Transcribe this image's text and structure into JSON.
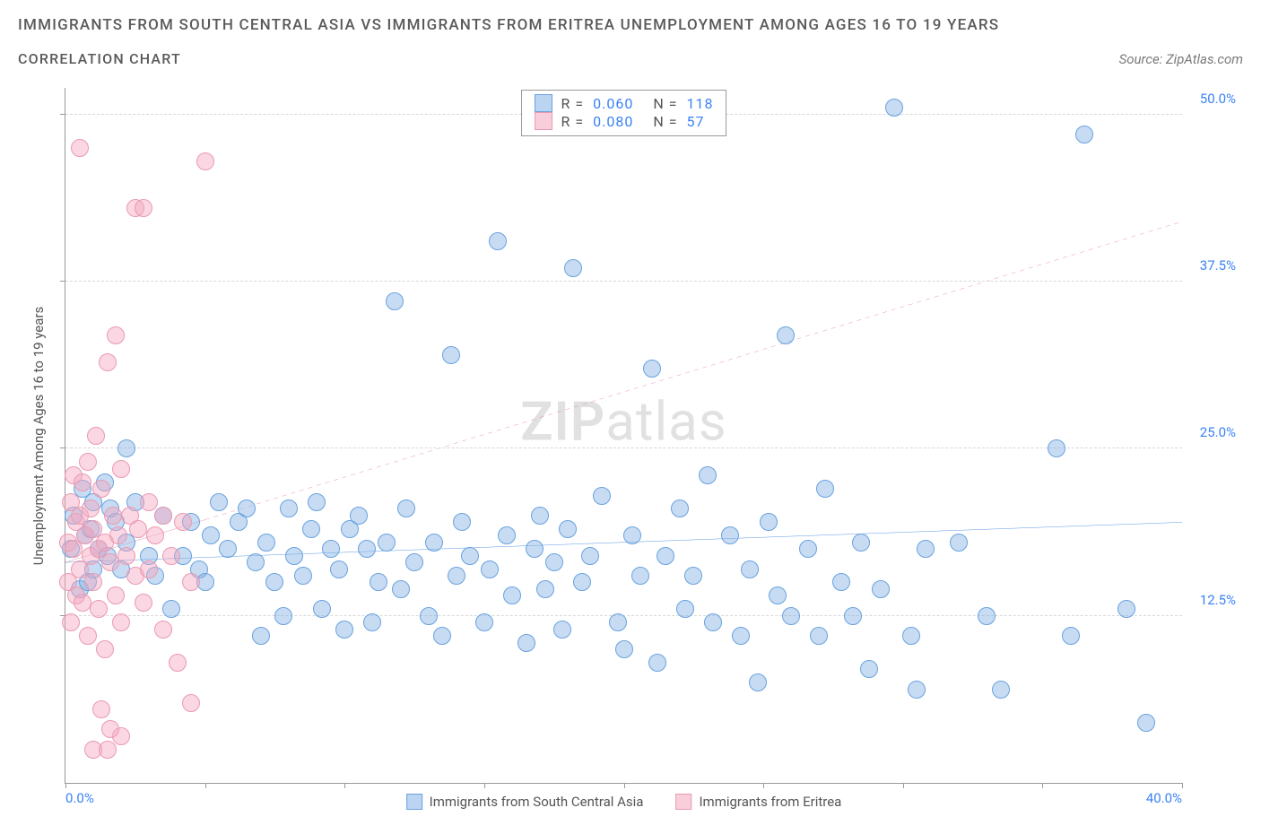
{
  "header": {
    "title": "IMMIGRANTS FROM SOUTH CENTRAL ASIA VS IMMIGRANTS FROM ERITREA UNEMPLOYMENT AMONG AGES 16 TO 19 YEARS",
    "subtitle": "CORRELATION CHART",
    "source_label": "Source:",
    "source_value": "ZipAtlas.com"
  },
  "chart": {
    "type": "scatter",
    "xlim": [
      0,
      40
    ],
    "ylim": [
      0,
      52
    ],
    "xticks": [
      0,
      5,
      10,
      15,
      20,
      25,
      30,
      35,
      40
    ],
    "xtick_labels": {
      "0": "0.0%",
      "40": "40.0%"
    },
    "ytick_labels": [
      {
        "v": 12.5,
        "t": "12.5%"
      },
      {
        "v": 25.0,
        "t": "25.0%"
      },
      {
        "v": 37.5,
        "t": "37.5%"
      },
      {
        "v": 50.0,
        "t": "50.0%"
      }
    ],
    "gridlines_h": [
      12.5,
      25.0,
      37.5,
      50.0
    ],
    "ylabel": "Unemployment Among Ages 16 to 19 years",
    "background_color": "#ffffff",
    "grid_color": "#d8d8d8",
    "axis_color": "#999999",
    "tick_label_color": "#3b82f6",
    "watermark": {
      "part1": "ZIP",
      "part2": "atlas"
    }
  },
  "series": [
    {
      "name": "Immigrants from South Central Asia",
      "color_fill": "rgba(130,177,229,0.45)",
      "color_stroke": "#6aa2de",
      "marker_radius": 10,
      "trend": {
        "y_at_x0": 16.5,
        "y_at_xmax": 19.5,
        "stroke": "#2f7ed8",
        "width": 2.4,
        "dash": "none",
        "solid_until_x": 40
      },
      "R": "0.060",
      "N": "118",
      "points": [
        [
          0.2,
          17.5
        ],
        [
          0.3,
          20.0
        ],
        [
          0.5,
          14.5
        ],
        [
          0.6,
          22.0
        ],
        [
          0.7,
          18.5
        ],
        [
          0.8,
          15.0
        ],
        [
          0.9,
          19.0
        ],
        [
          1.0,
          21.0
        ],
        [
          1.0,
          16.0
        ],
        [
          1.2,
          17.5
        ],
        [
          1.4,
          22.5
        ],
        [
          1.5,
          17.0
        ],
        [
          1.6,
          20.5
        ],
        [
          1.8,
          19.5
        ],
        [
          2.0,
          16.0
        ],
        [
          2.2,
          25.0
        ],
        [
          2.2,
          18.0
        ],
        [
          2.5,
          21.0
        ],
        [
          3.0,
          17.0
        ],
        [
          3.2,
          15.5
        ],
        [
          3.5,
          20.0
        ],
        [
          3.8,
          13.0
        ],
        [
          4.2,
          17.0
        ],
        [
          4.5,
          19.5
        ],
        [
          4.8,
          16.0
        ],
        [
          5.0,
          15.0
        ],
        [
          5.2,
          18.5
        ],
        [
          5.5,
          21.0
        ],
        [
          5.8,
          17.5
        ],
        [
          6.2,
          19.5
        ],
        [
          6.5,
          20.5
        ],
        [
          6.8,
          16.5
        ],
        [
          7.0,
          11.0
        ],
        [
          7.2,
          18.0
        ],
        [
          7.5,
          15.0
        ],
        [
          7.8,
          12.5
        ],
        [
          8.0,
          20.5
        ],
        [
          8.2,
          17.0
        ],
        [
          8.5,
          15.5
        ],
        [
          8.8,
          19.0
        ],
        [
          9.0,
          21.0
        ],
        [
          9.2,
          13.0
        ],
        [
          9.5,
          17.5
        ],
        [
          9.8,
          16.0
        ],
        [
          10.0,
          11.5
        ],
        [
          10.2,
          19.0
        ],
        [
          10.5,
          20.0
        ],
        [
          10.8,
          17.5
        ],
        [
          11.0,
          12.0
        ],
        [
          11.2,
          15.0
        ],
        [
          11.5,
          18.0
        ],
        [
          11.8,
          36.0
        ],
        [
          12.0,
          14.5
        ],
        [
          12.2,
          20.5
        ],
        [
          12.5,
          16.5
        ],
        [
          13.0,
          12.5
        ],
        [
          13.2,
          18.0
        ],
        [
          13.5,
          11.0
        ],
        [
          13.8,
          32.0
        ],
        [
          14.0,
          15.5
        ],
        [
          14.2,
          19.5
        ],
        [
          14.5,
          17.0
        ],
        [
          15.0,
          12.0
        ],
        [
          15.2,
          16.0
        ],
        [
          15.5,
          40.5
        ],
        [
          15.8,
          18.5
        ],
        [
          16.0,
          14.0
        ],
        [
          16.5,
          10.5
        ],
        [
          16.8,
          17.5
        ],
        [
          17.0,
          20.0
        ],
        [
          17.2,
          14.5
        ],
        [
          17.5,
          16.5
        ],
        [
          17.8,
          11.5
        ],
        [
          18.0,
          19.0
        ],
        [
          18.2,
          38.5
        ],
        [
          18.5,
          15.0
        ],
        [
          18.8,
          17.0
        ],
        [
          19.2,
          21.5
        ],
        [
          19.8,
          12.0
        ],
        [
          20.0,
          10.0
        ],
        [
          20.3,
          18.5
        ],
        [
          20.6,
          15.5
        ],
        [
          21.0,
          31.0
        ],
        [
          21.2,
          9.0
        ],
        [
          21.5,
          17.0
        ],
        [
          22.0,
          20.5
        ],
        [
          22.2,
          13.0
        ],
        [
          22.5,
          15.5
        ],
        [
          23.0,
          23.0
        ],
        [
          23.2,
          12.0
        ],
        [
          23.8,
          18.5
        ],
        [
          24.2,
          11.0
        ],
        [
          24.5,
          16.0
        ],
        [
          24.8,
          7.5
        ],
        [
          25.2,
          19.5
        ],
        [
          25.5,
          14.0
        ],
        [
          25.8,
          33.5
        ],
        [
          26.0,
          12.5
        ],
        [
          26.6,
          17.5
        ],
        [
          27.0,
          11.0
        ],
        [
          27.2,
          22.0
        ],
        [
          27.8,
          15.0
        ],
        [
          28.2,
          12.5
        ],
        [
          28.5,
          18.0
        ],
        [
          28.8,
          8.5
        ],
        [
          29.2,
          14.5
        ],
        [
          29.7,
          50.5
        ],
        [
          30.3,
          11.0
        ],
        [
          30.8,
          17.5
        ],
        [
          32.0,
          18.0
        ],
        [
          33.0,
          12.5
        ],
        [
          35.5,
          25.0
        ],
        [
          36.5,
          48.5
        ],
        [
          38.0,
          13.0
        ],
        [
          38.7,
          4.5
        ],
        [
          36.0,
          11.0
        ],
        [
          33.5,
          7.0
        ],
        [
          30.5,
          7.0
        ]
      ]
    },
    {
      "name": "Immigrants from Eritrea",
      "color_fill": "rgba(244,166,190,0.45)",
      "color_stroke": "#ea9ab2",
      "marker_radius": 10,
      "trend": {
        "y_at_x0": 16.5,
        "y_at_xmax": 42.0,
        "stroke": "#e05a8a",
        "width": 2.0,
        "dash": "5,5",
        "solid_until_x": 5
      },
      "R": "0.080",
      "N": "57",
      "points": [
        [
          0.1,
          18.0
        ],
        [
          0.1,
          15.0
        ],
        [
          0.2,
          21.0
        ],
        [
          0.2,
          12.0
        ],
        [
          0.3,
          17.5
        ],
        [
          0.3,
          23.0
        ],
        [
          0.4,
          19.5
        ],
        [
          0.4,
          14.0
        ],
        [
          0.5,
          20.0
        ],
        [
          0.5,
          16.0
        ],
        [
          0.6,
          22.5
        ],
        [
          0.6,
          13.5
        ],
        [
          0.7,
          18.5
        ],
        [
          0.8,
          24.0
        ],
        [
          0.8,
          11.0
        ],
        [
          0.9,
          17.0
        ],
        [
          0.9,
          20.5
        ],
        [
          1.0,
          15.0
        ],
        [
          1.0,
          19.0
        ],
        [
          1.1,
          26.0
        ],
        [
          1.2,
          17.5
        ],
        [
          1.2,
          13.0
        ],
        [
          1.3,
          22.0
        ],
        [
          1.4,
          18.0
        ],
        [
          1.4,
          10.0
        ],
        [
          1.5,
          31.5
        ],
        [
          1.6,
          16.5
        ],
        [
          1.7,
          20.0
        ],
        [
          1.8,
          14.0
        ],
        [
          1.8,
          33.5
        ],
        [
          1.9,
          18.5
        ],
        [
          2.0,
          12.0
        ],
        [
          2.0,
          23.5
        ],
        [
          2.2,
          17.0
        ],
        [
          2.3,
          20.0
        ],
        [
          2.5,
          15.5
        ],
        [
          2.5,
          43.0
        ],
        [
          2.6,
          19.0
        ],
        [
          2.8,
          43.0
        ],
        [
          2.8,
          13.5
        ],
        [
          3.0,
          21.0
        ],
        [
          3.0,
          16.0
        ],
        [
          3.2,
          18.5
        ],
        [
          3.5,
          11.5
        ],
        [
          3.5,
          20.0
        ],
        [
          3.8,
          17.0
        ],
        [
          4.0,
          9.0
        ],
        [
          4.2,
          19.5
        ],
        [
          4.5,
          15.0
        ],
        [
          0.5,
          47.5
        ],
        [
          5.0,
          46.5
        ],
        [
          4.5,
          6.0
        ],
        [
          1.3,
          5.5
        ],
        [
          2.0,
          3.5
        ],
        [
          1.6,
          4.0
        ],
        [
          1.0,
          2.5
        ],
        [
          1.5,
          2.5
        ]
      ]
    }
  ],
  "legend_top": {
    "rows": [
      {
        "sq_fill": "rgba(130,177,229,0.55)",
        "sq_stroke": "#6aa2de",
        "R_label": "R =",
        "R": "0.060",
        "N_label": "N =",
        "N": "118"
      },
      {
        "sq_fill": "rgba(244,166,190,0.55)",
        "sq_stroke": "#ea9ab2",
        "R_label": "R =",
        "R": "0.080",
        "N_label": "N =",
        "N": "57"
      }
    ]
  },
  "legend_bottom": [
    {
      "sq_fill": "rgba(130,177,229,0.55)",
      "sq_stroke": "#6aa2de",
      "label": "Immigrants from South Central Asia"
    },
    {
      "sq_fill": "rgba(244,166,190,0.55)",
      "sq_stroke": "#ea9ab2",
      "label": "Immigrants from Eritrea"
    }
  ]
}
